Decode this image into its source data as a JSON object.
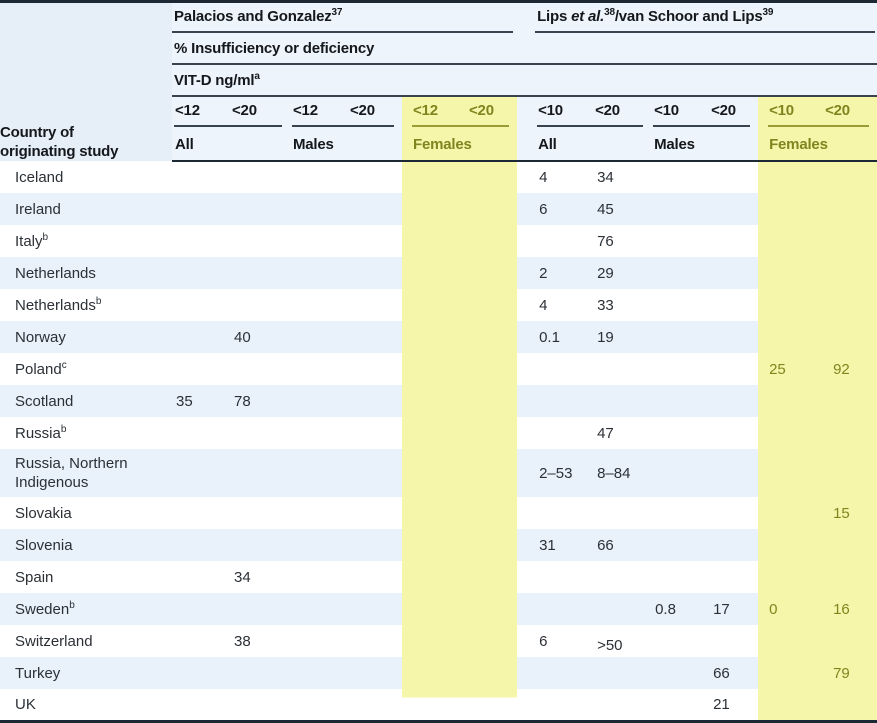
{
  "header": {
    "country_col": "Country of originating study",
    "group1": {
      "title": "Palacios and Gonzalez",
      "sup": "37"
    },
    "group2": {
      "pre": "Lips ",
      "italic": "et al.",
      "sup1": "38",
      "mid": "/van Schoor and Lips",
      "sup2": "39"
    },
    "subtitle": "% Insufficiency or deficiency",
    "unit": {
      "text": "VIT-D ng/ml",
      "sup": "a"
    },
    "thresholds": {
      "group1": [
        "<12",
        "<20"
      ],
      "group2": [
        "<10",
        "<20"
      ]
    },
    "sex_labels": [
      "All",
      "Males",
      "Females"
    ]
  },
  "columns": [
    "p_all_lt12",
    "p_all_lt20",
    "p_m_lt12",
    "p_m_lt20",
    "p_f_lt12",
    "p_f_lt20",
    "l_all_lt10",
    "l_all_lt20",
    "l_m_lt10",
    "l_m_lt20",
    "l_f_lt10",
    "l_f_lt20"
  ],
  "rows": [
    {
      "country": "Iceland",
      "note": "",
      "values": [
        "",
        "",
        "",
        "",
        "",
        "",
        "4",
        "34",
        "",
        "",
        "",
        ""
      ]
    },
    {
      "country": "Ireland",
      "note": "",
      "values": [
        "",
        "",
        "",
        "",
        "",
        "",
        "6",
        "45",
        "",
        "",
        "",
        ""
      ]
    },
    {
      "country": "Italy",
      "note": "b",
      "values": [
        "",
        "",
        "",
        "",
        "",
        "",
        "",
        "76",
        "",
        "",
        "",
        ""
      ]
    },
    {
      "country": "Netherlands",
      "note": "",
      "values": [
        "",
        "",
        "",
        "",
        "",
        "",
        "2",
        "29",
        "",
        "",
        "",
        ""
      ]
    },
    {
      "country": "Netherlands",
      "note": "b",
      "values": [
        "",
        "",
        "",
        "",
        "",
        "",
        "4",
        "33",
        "",
        "",
        "",
        ""
      ]
    },
    {
      "country": "Norway",
      "note": "",
      "values": [
        "",
        "40",
        "",
        "",
        "",
        "",
        "0.1",
        "19",
        "",
        "",
        "",
        ""
      ]
    },
    {
      "country": "Poland",
      "note": "c",
      "values": [
        "",
        "",
        "",
        "",
        "",
        "",
        "",
        "",
        "",
        "",
        "25",
        "92"
      ]
    },
    {
      "country": "Scotland",
      "note": "",
      "values": [
        "35",
        "78",
        "",
        "",
        "",
        "",
        "",
        "",
        "",
        "",
        "",
        ""
      ]
    },
    {
      "country": "Russia",
      "note": "b",
      "values": [
        "",
        "",
        "",
        "",
        "",
        "",
        "",
        "47",
        "",
        "",
        "",
        ""
      ]
    },
    {
      "country": "Russia, Northern Indigenous",
      "note": "",
      "values": [
        "",
        "",
        "",
        "",
        "",
        "",
        "2–53",
        "8–84",
        "",
        "",
        "",
        ""
      ]
    },
    {
      "country": "Slovakia",
      "note": "",
      "values": [
        "",
        "",
        "",
        "",
        "",
        "",
        "",
        "",
        "",
        "",
        "",
        "15"
      ]
    },
    {
      "country": "Slovenia",
      "note": "",
      "values": [
        "",
        "",
        "",
        "",
        "",
        "",
        "31",
        "66",
        "",
        "",
        "",
        ""
      ]
    },
    {
      "country": "Spain",
      "note": "",
      "values": [
        "",
        "34",
        "",
        "",
        "",
        "",
        "",
        "",
        "",
        "",
        "",
        ""
      ]
    },
    {
      "country": "Sweden",
      "note": "b",
      "values": [
        "",
        "",
        "",
        "",
        "",
        "",
        "",
        "",
        "0.8",
        "17",
        "0",
        "16"
      ]
    },
    {
      "country": "Switzerland",
      "note": "",
      "values": [
        "",
        "38",
        "",
        "",
        "",
        "",
        "6",
        ">50",
        "",
        "",
        "",
        ""
      ]
    },
    {
      "country": "Turkey",
      "note": "",
      "values": [
        "",
        "",
        "",
        "",
        "",
        "",
        "",
        "",
        "",
        "66",
        "",
        "79"
      ]
    },
    {
      "country": "UK",
      "note": "",
      "values": [
        "",
        "",
        "",
        "",
        "",
        "",
        "",
        "",
        "",
        "21",
        "",
        ""
      ]
    }
  ],
  "colors": {
    "highlight_yellow": "#f6f6aa",
    "olive_text": "#82841f",
    "alt_row_blue": "#e9f2fa",
    "header_blue": "#eef4fb",
    "country_header_blue": "#e6eef7",
    "line_dark": "#1d2835",
    "line_thin": "#39434f",
    "text_dark": "#2b3036"
  }
}
